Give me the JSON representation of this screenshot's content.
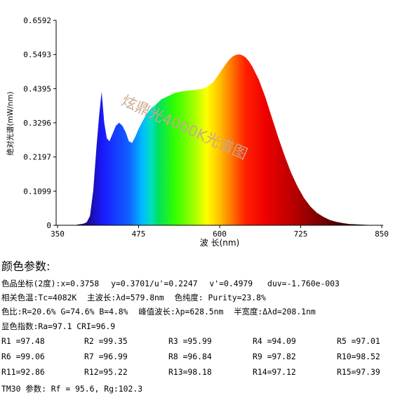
{
  "chart_data": {
    "type": "area",
    "ylabel": "绝对光谱(mW/nm)",
    "xlabel": "波 长(nm)",
    "watermark": "炫鼎光4000K光谱图",
    "x_ticks": [
      "350",
      "475",
      "600",
      "725",
      "850"
    ],
    "y_ticks": [
      "0",
      "0.1099",
      "0.2197",
      "0.3296",
      "0.4395",
      "0.5493",
      "0.6592"
    ],
    "xlim": [
      350,
      850
    ],
    "ylim": [
      0,
      0.6592
    ],
    "grid": false,
    "x": [
      380,
      390,
      395,
      400,
      405,
      410,
      414,
      418,
      422,
      426,
      430,
      435,
      440,
      445,
      450,
      455,
      460,
      465,
      470,
      475,
      480,
      485,
      490,
      495,
      500,
      505,
      510,
      520,
      530,
      540,
      550,
      560,
      570,
      575,
      580,
      590,
      595,
      600,
      605,
      610,
      615,
      620,
      625,
      630,
      635,
      640,
      645,
      650,
      660,
      670,
      680,
      690,
      700,
      710,
      720,
      730,
      740,
      750,
      760,
      770,
      780,
      790,
      800,
      810,
      820,
      830,
      840,
      845
    ],
    "y": [
      0.002,
      0.005,
      0.01,
      0.03,
      0.11,
      0.25,
      0.35,
      0.43,
      0.33,
      0.28,
      0.27,
      0.295,
      0.32,
      0.33,
      0.32,
      0.3,
      0.27,
      0.265,
      0.285,
      0.31,
      0.33,
      0.35,
      0.365,
      0.378,
      0.385,
      0.395,
      0.405,
      0.415,
      0.425,
      0.43,
      0.433,
      0.435,
      0.438,
      0.44,
      0.445,
      0.46,
      0.475,
      0.49,
      0.505,
      0.52,
      0.533,
      0.543,
      0.548,
      0.55,
      0.547,
      0.54,
      0.528,
      0.512,
      0.47,
      0.415,
      0.35,
      0.285,
      0.225,
      0.17,
      0.125,
      0.088,
      0.06,
      0.04,
      0.027,
      0.017,
      0.011,
      0.007,
      0.004,
      0.003,
      0.002,
      0.001,
      0.0005,
      0.0003
    ]
  },
  "params": {
    "title": "颜色参数:",
    "line1": [
      "色品坐标(2度):x=0.3758",
      "y=0.3701/u'=0.2247",
      "v'=0.4979",
      "duv=-1.760e-003"
    ],
    "line2": [
      "相关色温:Tc=4082K",
      "主波长:λd=579.8nm",
      "色纯度: Purity=23.8%"
    ],
    "line3": [
      "色比:R=20.6% G=74.6% B=4.8%",
      "峰值波长:λp=628.5nm",
      "半宽度:Δλd=208.1nm"
    ],
    "line4": "显色指数:Ra=97.1  CRI=96.9",
    "rvalues": [
      [
        "R1 =97.48",
        "R2 =99.35",
        "R3 =95.99",
        "R4 =94.09",
        "R5 =97.01"
      ],
      [
        "R6 =99.06",
        "R7 =96.99",
        "R8 =96.84",
        "R9 =97.82",
        "R10=98.52"
      ],
      [
        "R11=92.86",
        "R12=95.22",
        "R13=98.18",
        "R14=97.12",
        "R15=97.39"
      ]
    ],
    "tm30": "TM30 参数: Rf = 95.6, Rg:102.3"
  }
}
